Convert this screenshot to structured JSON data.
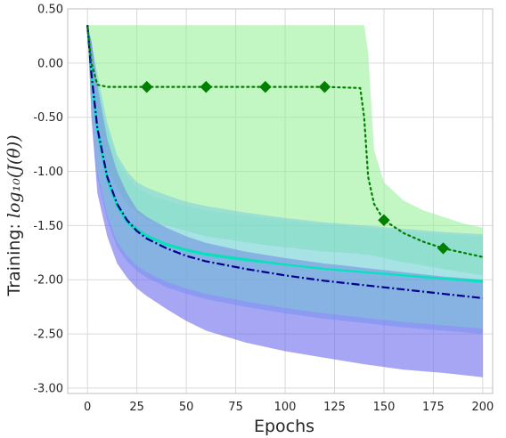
{
  "chart_data": {
    "type": "line",
    "xlabel": "Epochs",
    "ylabel_prefix": "Training: ",
    "ylabel_math": "log₁₀(J(θ))",
    "xlim": [
      -10,
      205
    ],
    "ylim": [
      -3.05,
      0.5
    ],
    "xticks": [
      0,
      25,
      50,
      75,
      100,
      125,
      150,
      175,
      200
    ],
    "xtick_labels": [
      "0",
      "25",
      "50",
      "75",
      "100",
      "125",
      "150",
      "175",
      "200"
    ],
    "yticks": [
      0.5,
      0.0,
      -0.5,
      -1.0,
      -1.5,
      -2.0,
      -2.5,
      -3.0
    ],
    "ytick_labels": [
      "0.50",
      "0.00",
      "-0.50",
      "-1.00",
      "-1.50",
      "-2.00",
      "-2.50",
      "-3.00"
    ],
    "grid": true,
    "series": [
      {
        "key": "dotted-diamond",
        "color": "#008000",
        "band_color": "#90ee90",
        "style": "dotted",
        "x": [
          0,
          2,
          5,
          10,
          20,
          30,
          60,
          90,
          120,
          138,
          140,
          142,
          145,
          150,
          160,
          170,
          180,
          190,
          200
        ],
        "y": [
          0.33,
          0.0,
          -0.2,
          -0.22,
          -0.22,
          -0.22,
          -0.22,
          -0.22,
          -0.22,
          -0.23,
          -0.5,
          -1.05,
          -1.3,
          -1.45,
          -1.57,
          -1.65,
          -1.71,
          -1.75,
          -1.79
        ],
        "markers_x": [
          30,
          60,
          90,
          120,
          150,
          180
        ],
        "markers_y": [
          -0.22,
          -0.22,
          -0.22,
          -0.22,
          -1.45,
          -1.71
        ],
        "band_upper": [
          0.35,
          0.35,
          0.35,
          0.35,
          0.35,
          0.35,
          0.35,
          0.35,
          0.35,
          0.35,
          0.35,
          0.1,
          -0.8,
          -1.1,
          -1.27,
          -1.36,
          -1.42,
          -1.48,
          -1.52
        ],
        "band_lower": [
          0.35,
          -0.3,
          -0.7,
          -1.0,
          -1.3,
          -1.45,
          -1.6,
          -1.68,
          -1.74,
          -1.76,
          -1.77,
          -1.77,
          -1.78,
          -1.8,
          -1.84,
          -1.87,
          -1.9,
          -1.93,
          -1.96
        ]
      },
      {
        "key": "dashdot-navy",
        "color": "#00008b",
        "band_color": "#6b6bee",
        "style": "dashdot",
        "x": [
          0,
          2,
          5,
          10,
          15,
          20,
          25,
          30,
          40,
          50,
          60,
          80,
          100,
          120,
          140,
          160,
          180,
          200
        ],
        "y": [
          0.35,
          -0.1,
          -0.6,
          -1.05,
          -1.3,
          -1.45,
          -1.55,
          -1.62,
          -1.71,
          -1.78,
          -1.83,
          -1.9,
          -1.96,
          -2.01,
          -2.05,
          -2.09,
          -2.13,
          -2.17
        ],
        "band_upper": [
          0.35,
          0.2,
          -0.2,
          -0.7,
          -1.0,
          -1.2,
          -1.35,
          -1.42,
          -1.52,
          -1.6,
          -1.66,
          -1.74,
          -1.8,
          -1.85,
          -1.89,
          -1.93,
          -1.97,
          -2.0
        ],
        "band_lower": [
          0.35,
          -0.5,
          -1.2,
          -1.6,
          -1.85,
          -1.98,
          -2.08,
          -2.15,
          -2.27,
          -2.38,
          -2.47,
          -2.58,
          -2.66,
          -2.72,
          -2.78,
          -2.83,
          -2.86,
          -2.9
        ]
      },
      {
        "key": "solid-teal",
        "color": "#1ed6b4",
        "band_color": "#6fc4e8",
        "style": "solid",
        "x": [
          0,
          2,
          5,
          10,
          15,
          20,
          25,
          30,
          40,
          50,
          60,
          80,
          100,
          120,
          140,
          160,
          180,
          200
        ],
        "y": [
          0.35,
          -0.1,
          -0.6,
          -1.05,
          -1.3,
          -1.45,
          -1.53,
          -1.59,
          -1.67,
          -1.72,
          -1.76,
          -1.81,
          -1.86,
          -1.9,
          -1.93,
          -1.96,
          -1.99,
          -2.01
        ],
        "band_upper": [
          0.35,
          0.2,
          -0.1,
          -0.55,
          -0.85,
          -1.0,
          -1.1,
          -1.15,
          -1.22,
          -1.28,
          -1.32,
          -1.38,
          -1.43,
          -1.47,
          -1.5,
          -1.53,
          -1.56,
          -1.58
        ],
        "band_lower": [
          0.35,
          -0.45,
          -1.05,
          -1.45,
          -1.7,
          -1.83,
          -1.92,
          -1.98,
          -2.07,
          -2.13,
          -2.18,
          -2.25,
          -2.31,
          -2.36,
          -2.4,
          -2.44,
          -2.47,
          -2.5
        ]
      },
      {
        "key": "solid-cyan",
        "color": "#00e5c0",
        "band_color": "#7fe0c8",
        "style": "solid",
        "x": [
          0,
          2,
          5,
          10,
          15,
          20,
          25,
          30,
          40,
          50,
          60,
          80,
          100,
          120,
          140,
          160,
          180,
          200
        ],
        "y": [
          0.35,
          -0.12,
          -0.62,
          -1.08,
          -1.32,
          -1.47,
          -1.55,
          -1.6,
          -1.68,
          -1.73,
          -1.77,
          -1.82,
          -1.86,
          -1.9,
          -1.93,
          -1.96,
          -1.99,
          -2.02
        ],
        "band_upper": [
          0.35,
          0.1,
          -0.2,
          -0.6,
          -0.9,
          -1.05,
          -1.15,
          -1.2,
          -1.27,
          -1.32,
          -1.36,
          -1.41,
          -1.45,
          -1.49,
          -1.52,
          -1.55,
          -1.58,
          -1.6
        ],
        "band_lower": [
          0.35,
          -0.4,
          -1.0,
          -1.4,
          -1.65,
          -1.78,
          -1.87,
          -1.93,
          -2.02,
          -2.08,
          -2.13,
          -2.2,
          -2.26,
          -2.31,
          -2.35,
          -2.39,
          -2.42,
          -2.45
        ]
      }
    ]
  }
}
